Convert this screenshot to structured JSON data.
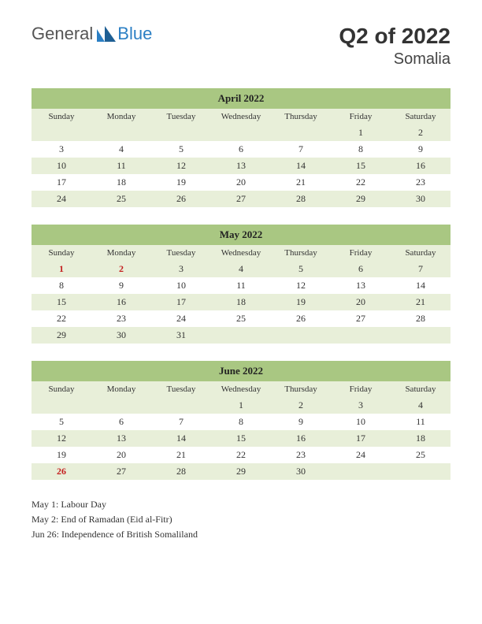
{
  "header": {
    "logo_general": "General",
    "logo_blue": "Blue",
    "quarter": "Q2 of 2022",
    "country": "Somalia"
  },
  "colors": {
    "month_header_bg": "#a9c782",
    "row_tint_bg": "#e8efd9",
    "holiday_text": "#c41e1e",
    "background": "#ffffff"
  },
  "day_names": [
    "Sunday",
    "Monday",
    "Tuesday",
    "Wednesday",
    "Thursday",
    "Friday",
    "Saturday"
  ],
  "months": [
    {
      "title": "April 2022",
      "weeks": [
        [
          "",
          "",
          "",
          "",
          "",
          "1",
          "2"
        ],
        [
          "3",
          "4",
          "5",
          "6",
          "7",
          "8",
          "9"
        ],
        [
          "10",
          "11",
          "12",
          "13",
          "14",
          "15",
          "16"
        ],
        [
          "17",
          "18",
          "19",
          "20",
          "21",
          "22",
          "23"
        ],
        [
          "24",
          "25",
          "26",
          "27",
          "28",
          "29",
          "30"
        ]
      ],
      "holidays": []
    },
    {
      "title": "May 2022",
      "weeks": [
        [
          "1",
          "2",
          "3",
          "4",
          "5",
          "6",
          "7"
        ],
        [
          "8",
          "9",
          "10",
          "11",
          "12",
          "13",
          "14"
        ],
        [
          "15",
          "16",
          "17",
          "18",
          "19",
          "20",
          "21"
        ],
        [
          "22",
          "23",
          "24",
          "25",
          "26",
          "27",
          "28"
        ],
        [
          "29",
          "30",
          "31",
          "",
          "",
          "",
          ""
        ]
      ],
      "holidays": [
        [
          0,
          0
        ],
        [
          0,
          1
        ]
      ]
    },
    {
      "title": "June 2022",
      "weeks": [
        [
          "",
          "",
          "",
          "1",
          "2",
          "3",
          "4"
        ],
        [
          "5",
          "6",
          "7",
          "8",
          "9",
          "10",
          "11"
        ],
        [
          "12",
          "13",
          "14",
          "15",
          "16",
          "17",
          "18"
        ],
        [
          "19",
          "20",
          "21",
          "22",
          "23",
          "24",
          "25"
        ],
        [
          "26",
          "27",
          "28",
          "29",
          "30",
          "",
          ""
        ]
      ],
      "holidays": [
        [
          4,
          0
        ]
      ]
    }
  ],
  "notes": [
    "May 1: Labour Day",
    "May 2: End of Ramadan (Eid al-Fitr)",
    "Jun 26: Independence of British Somaliland"
  ]
}
